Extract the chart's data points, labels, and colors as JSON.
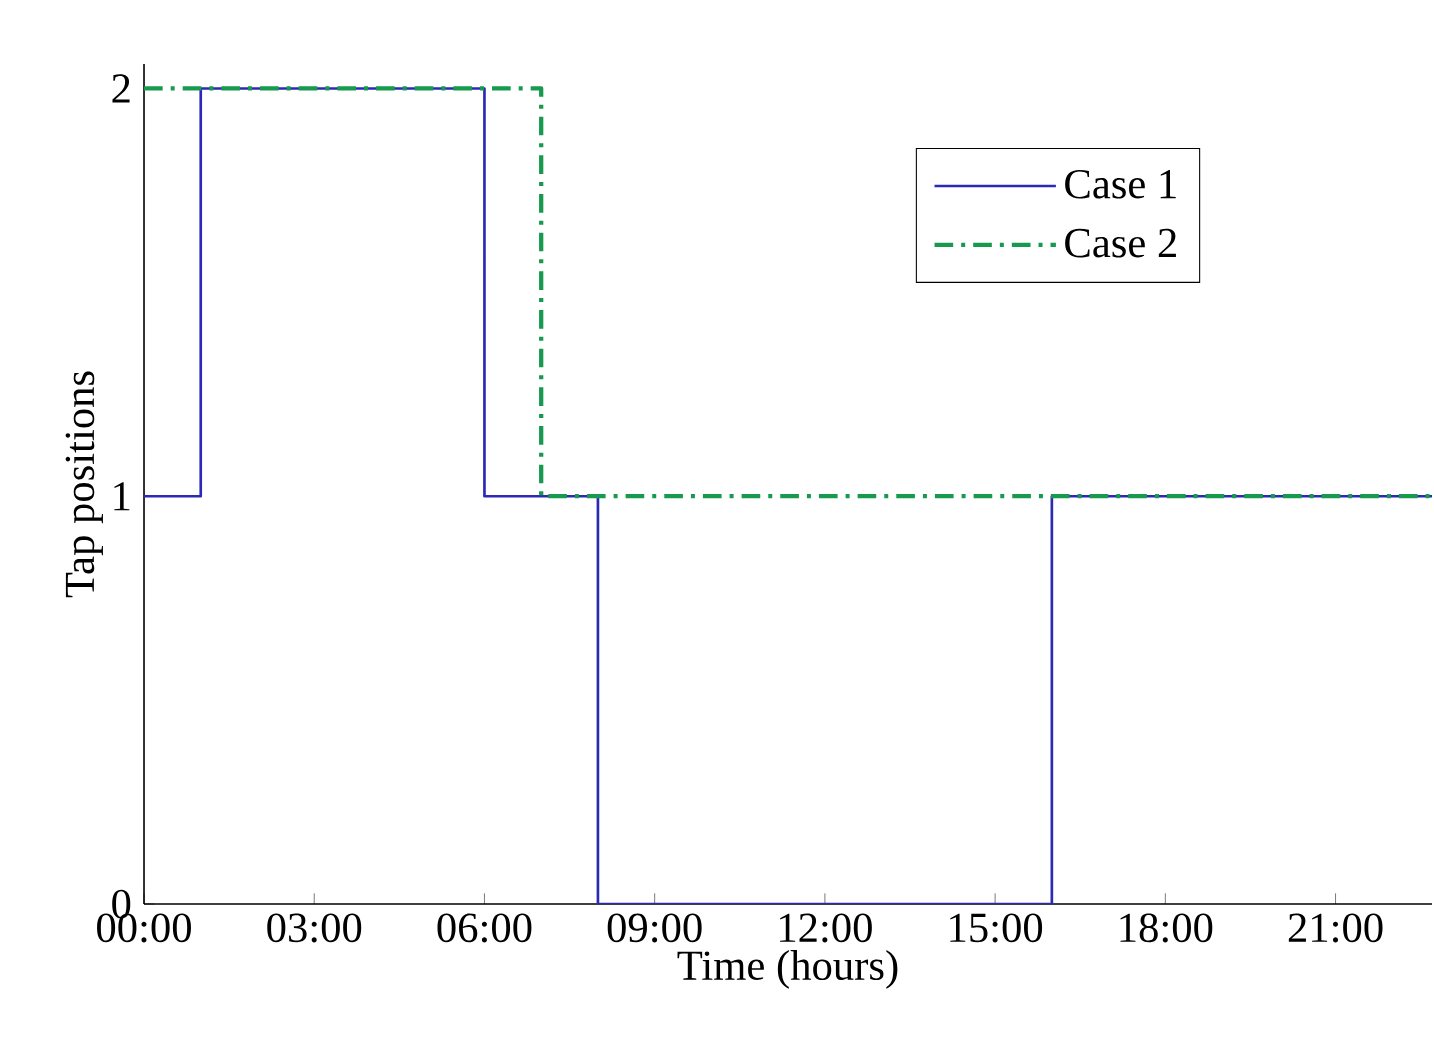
{
  "chart_data": {
    "type": "step",
    "xlabel": "Time (hours)",
    "ylabel": "Tap positions",
    "series": [
      {
        "name": "Case 1",
        "color": "#2a2ab4",
        "line_style": "solid",
        "x": [
          0,
          1,
          6,
          8,
          16,
          22.7
        ],
        "values": [
          1,
          2,
          1,
          0,
          1,
          1
        ]
      },
      {
        "name": "Case 2",
        "color": "#179a4e",
        "line_style": "dashdot",
        "x": [
          0,
          7,
          22.7
        ],
        "values": [
          2,
          1,
          1
        ]
      }
    ],
    "xlim": [
      0,
      22.7
    ],
    "ylim": [
      0,
      2.06
    ],
    "xticks": [
      {
        "value": 0,
        "label": "00:00"
      },
      {
        "value": 3,
        "label": "03:00"
      },
      {
        "value": 6,
        "label": "06:00"
      },
      {
        "value": 9,
        "label": "09:00"
      },
      {
        "value": 12,
        "label": "12:00"
      },
      {
        "value": 15,
        "label": "15:00"
      },
      {
        "value": 18,
        "label": "18:00"
      },
      {
        "value": 21,
        "label": "21:00"
      }
    ],
    "yticks": [
      0,
      1,
      2
    ],
    "grid": false,
    "legend": "top right",
    "marker": "none"
  }
}
